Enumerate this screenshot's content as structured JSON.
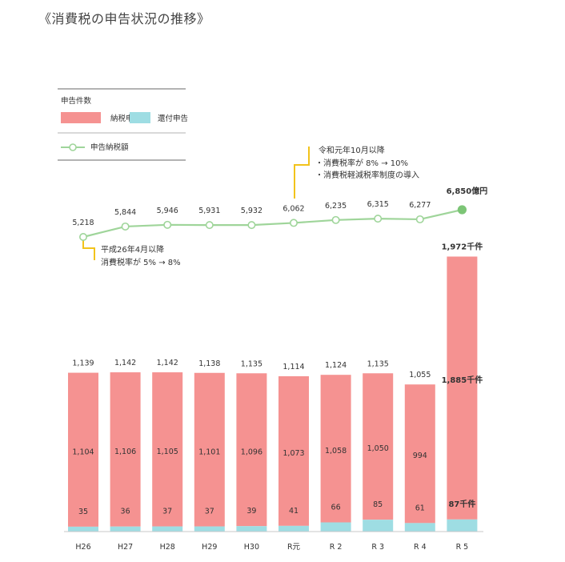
{
  "title": "《消費税の申告状況の推移》",
  "legend": {
    "count_label": "申告件数",
    "payment_label": "納税申告",
    "refund_label": "還付申告",
    "amount_label": "申告納税額"
  },
  "colors": {
    "payment": "#f59291",
    "refund": "#9edde3",
    "line": "#9fd59a",
    "line_dark": "#7cc576",
    "annotation": "#f2c31b",
    "legend_rule": "#b3b3b3"
  },
  "annotations": {
    "h26": [
      "平成26年4月以降",
      "消費税率が 5% → 8%"
    ],
    "r1": [
      "令和元年10月以降",
      "・消費税率が 8% → 10%",
      "・消費税軽減税率制度の導入"
    ]
  },
  "chart_data": {
    "type": "bar",
    "categories": [
      "H26",
      "H27",
      "H28",
      "H29",
      "H30",
      "R元",
      "R 2",
      "R 3",
      "R 4",
      "R 5"
    ],
    "total_labels": [
      "1,139",
      "1,142",
      "1,142",
      "1,138",
      "1,135",
      "1,114",
      "1,124",
      "1,135",
      "1,055",
      "1,972千件"
    ],
    "series": [
      {
        "name": "納税申告",
        "values": [
          1104,
          1106,
          1105,
          1101,
          1096,
          1073,
          1058,
          1050,
          994,
          1885
        ],
        "labels": [
          "1,104",
          "1,106",
          "1,105",
          "1,101",
          "1,096",
          "1,073",
          "1,058",
          "1,050",
          "994",
          "1,885千件"
        ]
      },
      {
        "name": "還付申告",
        "values": [
          35,
          36,
          37,
          37,
          39,
          41,
          66,
          85,
          61,
          87
        ],
        "labels": [
          "35",
          "36",
          "37",
          "37",
          "39",
          "41",
          "66",
          "85",
          "61",
          "87千件"
        ]
      },
      {
        "name": "申告納税額",
        "type": "line",
        "values": [
          5218,
          5844,
          5946,
          5931,
          5932,
          6062,
          6235,
          6315,
          6277,
          6850
        ],
        "labels": [
          "5,218",
          "5,844",
          "5,946",
          "5,931",
          "5,932",
          "6,062",
          "6,235",
          "6,315",
          "6,277",
          "6,850億円"
        ]
      }
    ]
  }
}
